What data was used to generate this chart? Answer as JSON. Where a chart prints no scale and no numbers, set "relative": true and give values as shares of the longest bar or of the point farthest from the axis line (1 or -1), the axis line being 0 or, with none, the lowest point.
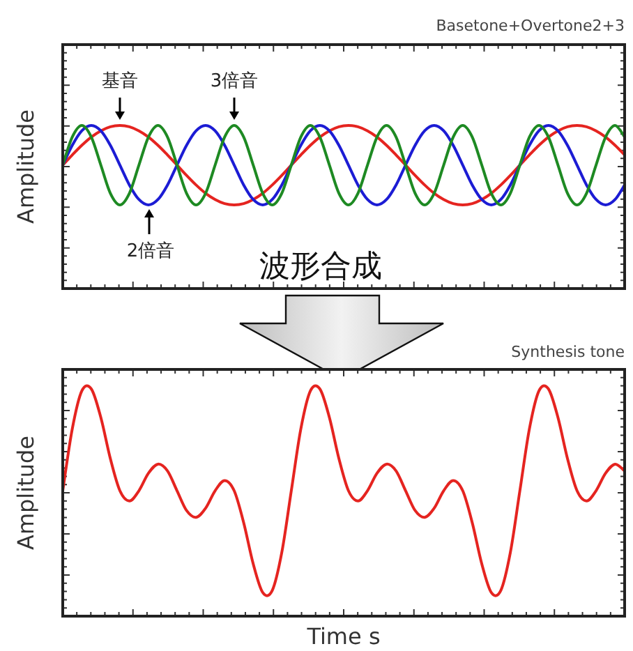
{
  "chart_data": [
    {
      "type": "line",
      "title": "Basetone+Overtone2+3",
      "ylabel": "Amplitude",
      "relative": true,
      "annotations": [
        "基音",
        "3倍音",
        "2倍音",
        "波形合成"
      ],
      "categories": [
        null,
        null,
        null,
        null,
        null,
        null,
        null,
        null,
        null,
        null,
        null,
        null,
        null,
        null,
        null,
        null,
        null,
        null,
        null,
        null,
        null,
        null,
        null,
        null,
        null,
        null,
        null,
        null,
        null,
        null,
        null,
        null,
        null,
        null,
        null,
        null,
        null,
        null,
        null,
        null,
        null,
        null,
        null,
        null,
        null,
        null,
        null,
        null,
        null,
        null,
        null,
        null,
        null,
        null,
        null,
        null,
        null,
        null,
        null,
        null
      ],
      "series": [
        {
          "color": "#e52420",
          "values": [
            0.757,
            0.819,
            0.878,
            0.929,
            0.967,
            0.992,
            1,
            0.992,
            0.967,
            0.929,
            0.878,
            0.819,
            0.757,
            0.694,
            0.635,
            0.584,
            0.546,
            0.521,
            0.513,
            0.521,
            0.546,
            0.584,
            0.635,
            0.694,
            0.757,
            0.819,
            0.878,
            0.929,
            0.967,
            0.992,
            1,
            0.992,
            0.967,
            0.929,
            0.878,
            0.819,
            0.757,
            0.694,
            0.635,
            0.584,
            0.546,
            0.521,
            0.513,
            0.521,
            0.546,
            0.584,
            0.635,
            0.694,
            0.757,
            0.819,
            0.878,
            0.929,
            0.967,
            0.992,
            1,
            0.992,
            0.967,
            0.929,
            0.878,
            0.819
          ]
        },
        {
          "color": "#1c1cd4",
          "values": [
            0.757,
            0.878,
            0.967,
            1,
            0.967,
            0.878,
            0.757,
            0.635,
            0.546,
            0.513,
            0.546,
            0.635,
            0.757,
            0.878,
            0.967,
            1,
            0.967,
            0.878,
            0.757,
            0.635,
            0.546,
            0.513,
            0.546,
            0.635,
            0.757,
            0.878,
            0.967,
            1,
            0.967,
            0.878,
            0.757,
            0.635,
            0.546,
            0.513,
            0.546,
            0.635,
            0.757,
            0.878,
            0.967,
            1,
            0.967,
            0.878,
            0.757,
            0.635,
            0.546,
            0.513,
            0.546,
            0.635,
            0.757,
            0.878,
            0.967,
            1,
            0.967,
            0.878,
            0.757,
            0.635,
            0.546,
            0.513,
            0.546,
            0.635
          ]
        },
        {
          "color": "#1e8a23",
          "values": [
            0.757,
            0.929,
            1,
            0.929,
            0.757,
            0.584,
            0.513,
            0.584,
            0.757,
            0.929,
            1,
            0.929,
            0.757,
            0.584,
            0.513,
            0.584,
            0.757,
            0.929,
            1,
            0.929,
            0.757,
            0.584,
            0.513,
            0.584,
            0.757,
            0.929,
            1,
            0.929,
            0.757,
            0.584,
            0.513,
            0.584,
            0.757,
            0.929,
            1,
            0.929,
            0.757,
            0.584,
            0.513,
            0.584,
            0.757,
            0.929,
            1,
            0.929,
            0.757,
            0.584,
            0.513,
            0.584,
            0.757,
            0.929,
            1,
            0.929,
            0.757,
            0.584,
            0.513,
            0.584,
            0.757,
            0.929,
            1,
            0.929
          ]
        }
      ]
    },
    {
      "type": "line",
      "title": "Synthesis tone",
      "ylabel": "Amplitude",
      "xlabel": "Time s",
      "relative": true,
      "categories": [
        null,
        null,
        null,
        null,
        null,
        null,
        null,
        null,
        null,
        null,
        null,
        null,
        null,
        null,
        null,
        null,
        null,
        null,
        null,
        null,
        null,
        null,
        null,
        null,
        null,
        null,
        null,
        null,
        null,
        null,
        null,
        null,
        null,
        null,
        null,
        null,
        null,
        null,
        null,
        null,
        null,
        null,
        null,
        null,
        null,
        null,
        null,
        null,
        null,
        null,
        null,
        null,
        null,
        null,
        null,
        null,
        null,
        null,
        null,
        null
      ],
      "series": [
        {
          "color": "#e52420",
          "values": [
            0.552,
            0.824,
            0.991,
            1,
            0.874,
            0.693,
            0.552,
            0.507,
            0.552,
            0.629,
            0.669,
            0.639,
            0.552,
            0.465,
            0.435,
            0.475,
            0.552,
            0.597,
            0.552,
            0.411,
            0.23,
            0.104,
            0.113,
            0.28,
            0.552,
            0.824,
            0.991,
            1,
            0.874,
            0.693,
            0.552,
            0.507,
            0.552,
            0.629,
            0.669,
            0.639,
            0.552,
            0.465,
            0.435,
            0.475,
            0.552,
            0.597,
            0.552,
            0.411,
            0.23,
            0.104,
            0.113,
            0.28,
            0.552,
            0.824,
            0.991,
            1,
            0.874,
            0.693,
            0.552,
            0.507,
            0.552,
            0.629,
            0.669,
            0.639
          ]
        }
      ]
    }
  ]
}
